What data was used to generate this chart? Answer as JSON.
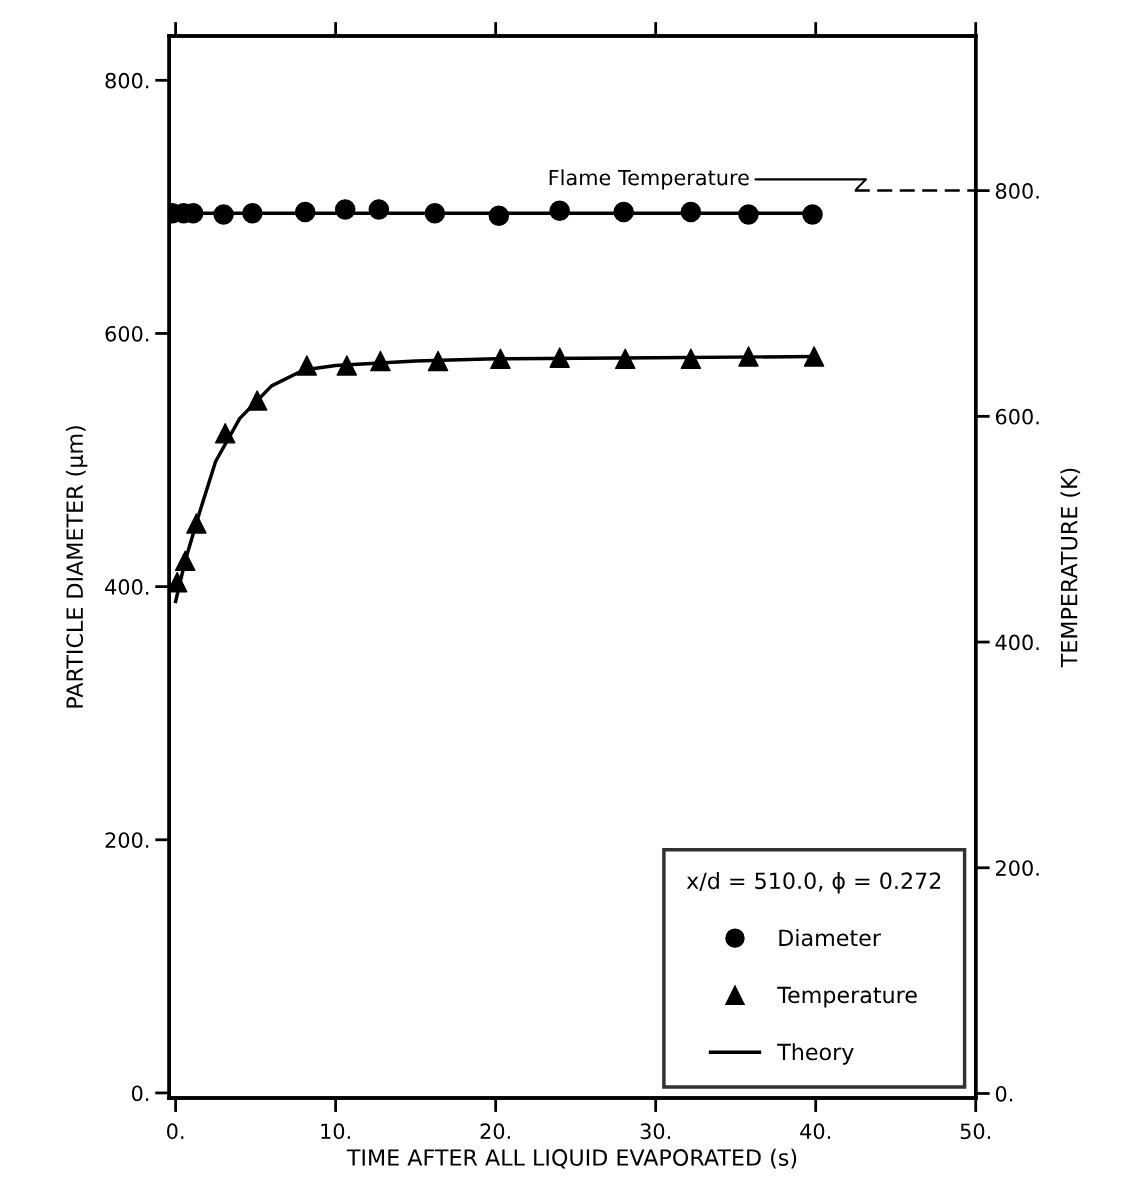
{
  "chart_data": {
    "type": "scatter",
    "xlabel": "TIME AFTER ALL LIQUID EVAPORATED (s)",
    "ylabel": "PARTICLE DIAMETER (µm)",
    "y2label": "TEMPERATURE (K)",
    "legend_title": "x/d = 510.0, ϕ = 0.272",
    "legend": "bottom right",
    "xlim": [
      -0.4,
      50
    ],
    "xticks": [
      {
        "value": 0,
        "label": "0."
      },
      {
        "value": 10,
        "label": "10."
      },
      {
        "value": 20,
        "label": "20."
      },
      {
        "value": 30,
        "label": "30."
      },
      {
        "value": 40,
        "label": "40."
      },
      {
        "value": 50,
        "label": "50."
      }
    ],
    "ylim": [
      -4,
      835
    ],
    "yticks": [
      {
        "value": 0,
        "label": "0."
      },
      {
        "value": 200,
        "label": "200."
      },
      {
        "value": 400,
        "label": "400."
      },
      {
        "value": 600,
        "label": "600."
      },
      {
        "value": 800,
        "label": "800."
      }
    ],
    "y2lim": [
      -4,
      937
    ],
    "y2ticks": [
      {
        "value": 0,
        "label": "0."
      },
      {
        "value": 200,
        "label": "200."
      },
      {
        "value": 400,
        "label": "400."
      },
      {
        "value": 600,
        "label": "600."
      },
      {
        "value": 800,
        "label": "800."
      }
    ],
    "grid": false,
    "ref_lines": [
      {
        "axis": "y2",
        "value": 800,
        "label": "Flame Temperature",
        "line_style": "dashed",
        "color": "#000000"
      }
    ],
    "series": [
      {
        "name": "Diameter",
        "marker": "circle",
        "color": "#000000",
        "x": [
          -0.2,
          0.5,
          1.1,
          3.0,
          4.8,
          8.1,
          10.6,
          12.7,
          16.2,
          20.2,
          24.0,
          28.0,
          32.2,
          35.8,
          39.8
        ],
        "values": [
          695,
          695,
          695,
          694,
          695,
          696,
          698,
          698,
          695,
          693,
          697,
          696,
          696,
          694,
          694
        ]
      },
      {
        "name": "Temperature",
        "marker": "triangle",
        "axis": "y2",
        "color": "#000000",
        "x": [
          0.1,
          0.6,
          1.3,
          3.1,
          5.1,
          8.2,
          10.7,
          12.8,
          16.4,
          20.3,
          24.0,
          28.1,
          32.2,
          35.8,
          39.9
        ],
        "values": [
          453,
          472,
          505,
          585,
          614,
          645,
          645,
          649,
          649,
          651,
          652,
          651,
          651,
          653,
          653
        ]
      },
      {
        "name": "Theory",
        "type": "line",
        "line_style": "solid",
        "marker": "none",
        "color": "#000000",
        "x": [
          -0.2,
          39.8
        ],
        "values": [
          695,
          695
        ]
      },
      {
        "type": "line",
        "line_style": "solid",
        "marker": "none",
        "axis": "y2",
        "color": "#000000",
        "x": [
          0,
          0.6,
          1.5,
          2.5,
          4,
          6,
          8,
          10,
          15,
          20,
          30,
          40
        ],
        "values": [
          436,
          472,
          515,
          560,
          598,
          627,
          641,
          645,
          649,
          651,
          652,
          653
        ]
      }
    ]
  }
}
